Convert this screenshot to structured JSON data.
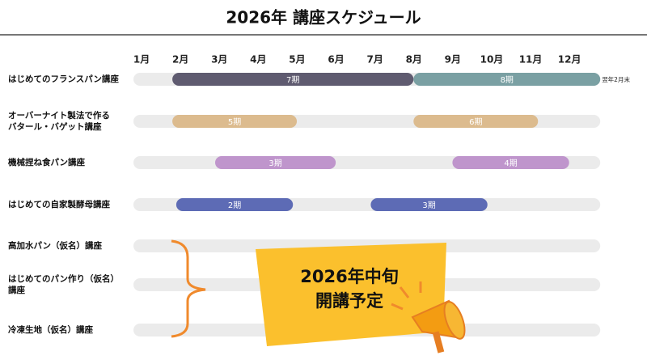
{
  "title": "2026年 講座スケジュール",
  "months": [
    "1月",
    "2月",
    "3月",
    "4月",
    "5月",
    "6月",
    "7月",
    "8月",
    "9月",
    "10月",
    "11月",
    "12月"
  ],
  "track_color": "#ebebeb",
  "courses": [
    {
      "name": [
        "はじめてのフランスパン講座"
      ],
      "bars": [
        {
          "label": "7期",
          "start": 2.0,
          "end": 8.2,
          "color": "#5f5b70"
        },
        {
          "label": "8期",
          "start": 8.2,
          "end": 13.0,
          "color": "#7aa0a3",
          "note": "翌年2月末"
        }
      ]
    },
    {
      "name": [
        "オーバーナイト製法で作る",
        "バタール・バゲット講座"
      ],
      "bars": [
        {
          "label": "5期",
          "start": 2.0,
          "end": 5.2,
          "color": "#dcbb8e"
        },
        {
          "label": "6期",
          "start": 8.2,
          "end": 11.4,
          "color": "#dcbb8e"
        }
      ]
    },
    {
      "name": [
        "機械捏ね食パン講座"
      ],
      "bars": [
        {
          "label": "3期",
          "start": 3.1,
          "end": 6.2,
          "color": "#bf95cc"
        },
        {
          "label": "4期",
          "start": 9.2,
          "end": 12.2,
          "color": "#bf95cc"
        }
      ]
    },
    {
      "name": [
        "はじめての自家製酵母講座"
      ],
      "bars": [
        {
          "label": "2期",
          "start": 2.1,
          "end": 5.1,
          "color": "#5d6bb5"
        },
        {
          "label": "3期",
          "start": 7.1,
          "end": 10.1,
          "color": "#5d6bb5"
        }
      ]
    },
    {
      "name": [
        "高加水パン（仮名）講座"
      ],
      "bars": []
    },
    {
      "name": [
        "はじめてのパン作り（仮名）",
        "講座"
      ],
      "bars": []
    },
    {
      "name": [
        "冷凍生地（仮名）講座"
      ],
      "bars": []
    }
  ],
  "callout": [
    "2026年中旬",
    "開講予定"
  ]
}
